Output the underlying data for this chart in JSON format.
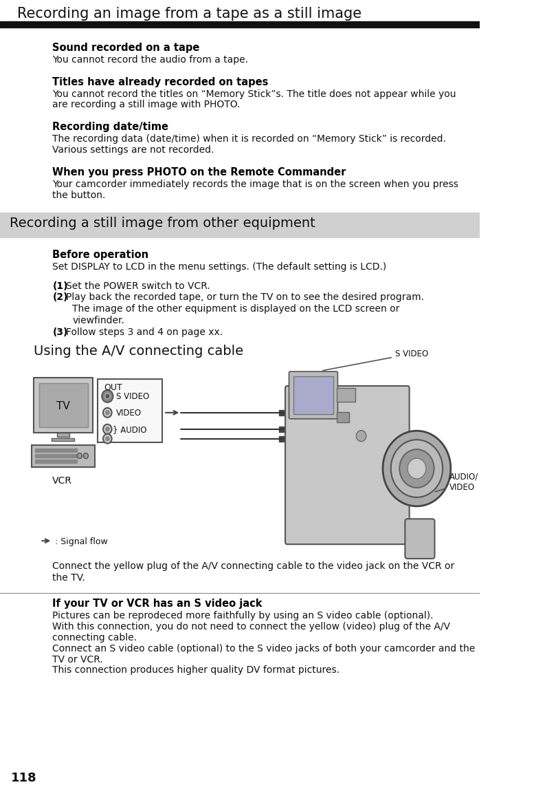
{
  "page_title": "Recording an image from a tape as a still image",
  "page_number": "118",
  "bg_color": "#ffffff",
  "title_bar_color": "#000000",
  "section_bg_color": "#d0d0d0",
  "section2_title": "Recording a still image from other equipment",
  "bold_sections": [
    {
      "heading": "Sound recorded on a tape",
      "body": "You cannot record the audio from a tape."
    },
    {
      "heading": "Titles have already recorded on tapes",
      "body": "You cannot record the titles on “Memory Stick”s. The title does not appear while you\nare recording a still image with PHOTO."
    },
    {
      "heading": "Recording date/time",
      "body": "The recording data (date/time) when it is recorded on “Memory Stick” is recorded.\nVarious settings are not recorded."
    },
    {
      "heading": "When you press PHOTO on the Remote Commander",
      "body": "Your camcorder immediately records the image that is on the screen when you press\nthe button."
    }
  ],
  "before_operation_heading": "Before operation",
  "before_operation_body": "Set DISPLAY to LCD in the menu settings. (The default setting is LCD.)",
  "steps": [
    {
      "num": "(1)",
      "lines": [
        "Set the POWER switch to VCR."
      ]
    },
    {
      "num": "(2)",
      "lines": [
        "Play back the recorded tape, or turn the TV on to see the desired program.",
        "The image of the other equipment is displayed on the LCD screen or",
        "viewfinder."
      ]
    },
    {
      "num": "(3)",
      "lines": [
        "Follow steps 3 and 4 on page xx."
      ]
    }
  ],
  "av_cable_title": "Using the A/V connecting cable",
  "connect_text": "Connect the yellow plug of the A/V connecting cable to the video jack on the VCR or\nthe TV.",
  "sv_jack_heading": "If your TV or VCR has an S video jack",
  "sv_jack_body": "Pictures can be reprodeced more faithfully by using an S video cable (optional).\nWith this connection, you do not need to connect the yellow (video) plug of the A/V\nconnecting cable.\nConnect an S video cable (optional) to the S video jacks of both your camcorder and the\nTV or VCR.\nThis connection produces higher quality DV format pictures.",
  "diagram_labels": {
    "tv": "TV",
    "vcr": "VCR",
    "out": "OUT",
    "s_video": "S VIDEO",
    "video": "VIDEO",
    "audio": "AUDIO",
    "signal_flow": ": Signal flow",
    "s_video_cam": "S VIDEO",
    "audio_video_cam": "AUDIO/\nVIDEO"
  }
}
